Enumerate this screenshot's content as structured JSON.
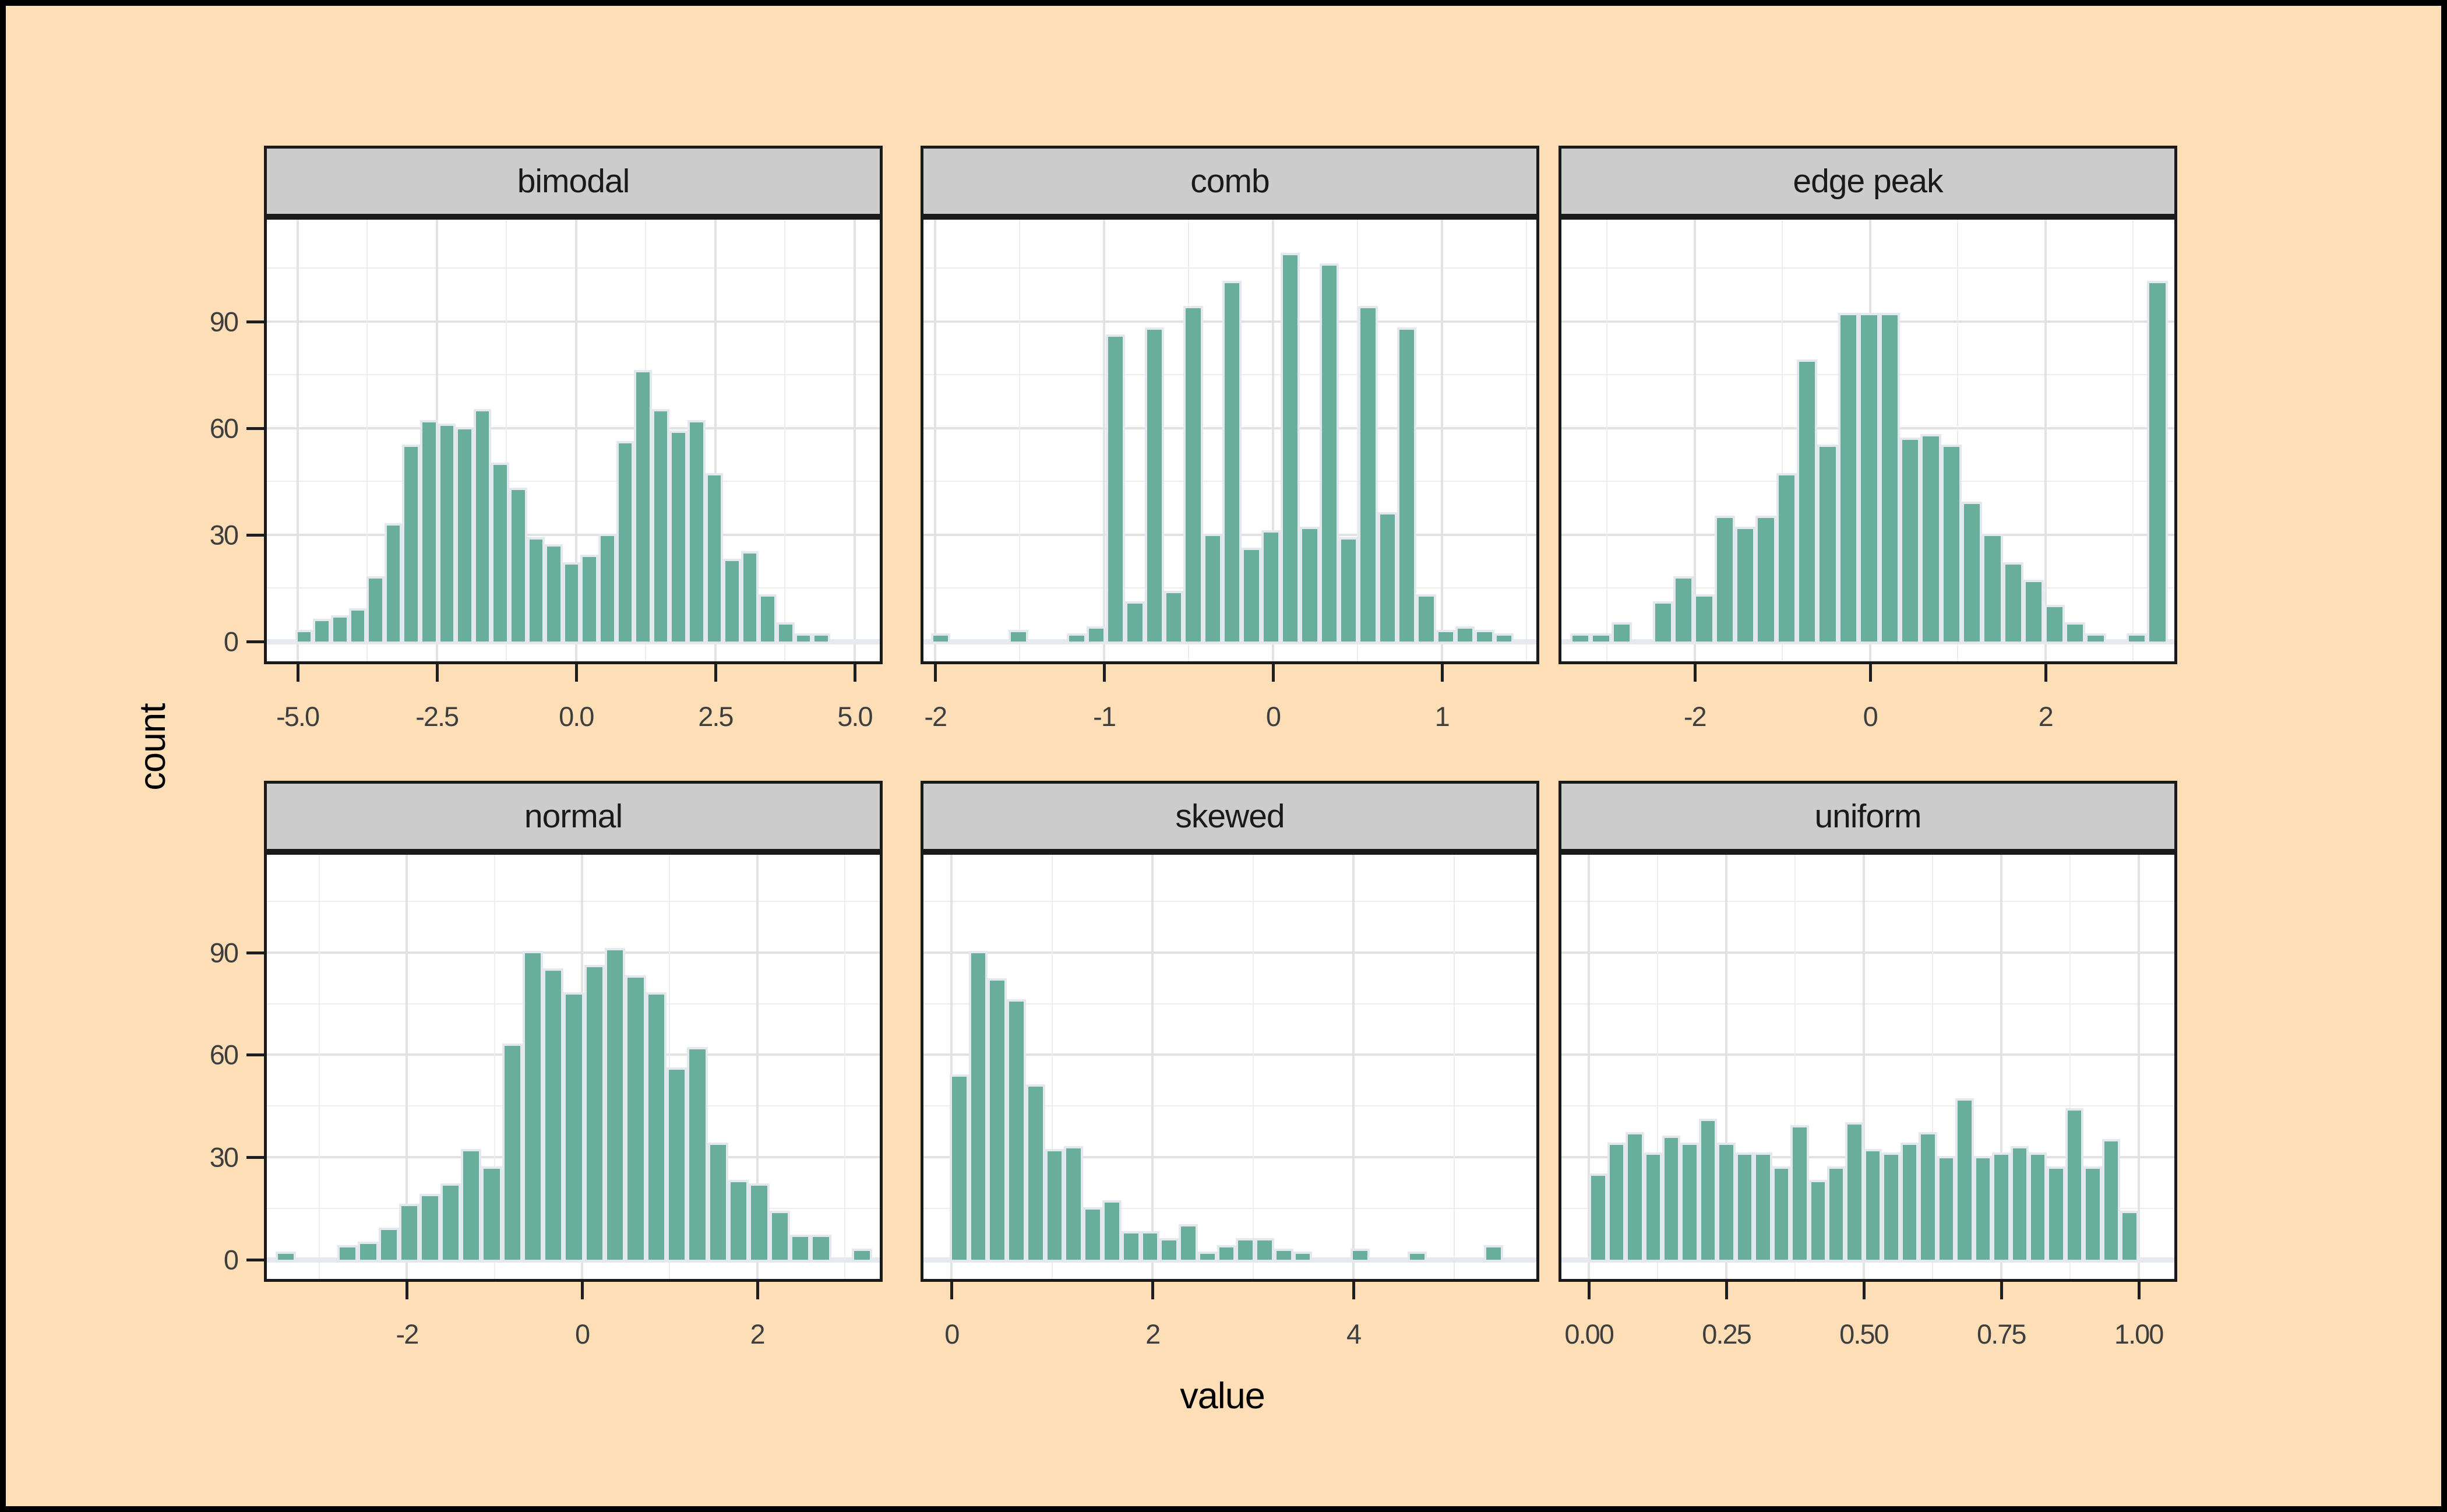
{
  "axes": {
    "x_title": "value",
    "y_title": "count",
    "y_ticks": [
      "0",
      "30",
      "60",
      "90"
    ],
    "y_tick_values": [
      0,
      30,
      60,
      90
    ],
    "y_minor_values": [
      15,
      45,
      75,
      105
    ]
  },
  "chart_data": {
    "type": "bar",
    "subtype": "faceted-histograms",
    "title": "",
    "xlabel": "value",
    "ylabel": "count",
    "ylim": [
      0,
      113
    ],
    "grid": "on",
    "legend": "none",
    "facet_layout": [
      "bimodal",
      "comb",
      "edge peak",
      "normal",
      "skewed",
      "uniform"
    ],
    "panels": [
      {
        "label": "bimodal",
        "xlim": [
          -5.55,
          5.45
        ],
        "tick_values": [
          -5.0,
          -2.5,
          0.0,
          2.5,
          5.0
        ],
        "tick_labels": [
          "-5.0",
          "-2.5",
          "0.0",
          "2.5",
          "5.0"
        ],
        "minor_values": [
          -3.75,
          -1.25,
          1.25,
          3.75
        ],
        "bin_start": -5.04,
        "bin_width": 0.32,
        "counts": [
          2,
          5,
          6,
          8,
          17,
          32,
          54,
          61,
          60,
          59,
          64,
          49,
          42,
          28,
          26,
          21,
          23,
          29,
          55,
          75,
          64,
          58,
          61,
          46,
          22,
          24,
          12,
          4,
          1,
          1
        ]
      },
      {
        "label": "comb",
        "xlim": [
          -2.07,
          1.56
        ],
        "tick_values": [
          -2,
          -1,
          0,
          1
        ],
        "tick_labels": [
          "-2",
          "-1",
          "0",
          "1"
        ],
        "minor_values": [
          -1.5,
          -0.5,
          0.5,
          1.5
        ],
        "bin_start": -2.14,
        "bin_width": 0.115,
        "counts": [
          0,
          1,
          0,
          0,
          0,
          2,
          0,
          0,
          1,
          3,
          85,
          10,
          87,
          13,
          93,
          29,
          100,
          25,
          30,
          108,
          31,
          105,
          28,
          93,
          35,
          87,
          12,
          2,
          3,
          2,
          1,
          0
        ]
      },
      {
        "label": "edge peak",
        "xlim": [
          -3.52,
          3.47
        ],
        "tick_values": [
          -2,
          0,
          2
        ],
        "tick_labels": [
          "-2",
          "0",
          "2"
        ],
        "minor_values": [
          -3,
          -1,
          1,
          3
        ],
        "bin_start": -3.42,
        "bin_width": 0.235,
        "counts": [
          1,
          1,
          4,
          0,
          10,
          17,
          12,
          34,
          31,
          34,
          46,
          78,
          54,
          91,
          91,
          91,
          56,
          57,
          54,
          38,
          29,
          21,
          16,
          9,
          4,
          1,
          0,
          1,
          100
        ]
      },
      {
        "label": "normal",
        "xlim": [
          -3.6,
          3.4
        ],
        "tick_values": [
          -2,
          0,
          2
        ],
        "tick_labels": [
          "-2",
          "0",
          "2"
        ],
        "minor_values": [
          -3,
          -1,
          1,
          3
        ],
        "bin_start": -3.5,
        "bin_width": 0.235,
        "counts": [
          1,
          0,
          0,
          3,
          4,
          8,
          15,
          18,
          21,
          31,
          26,
          62,
          89,
          84,
          77,
          85,
          90,
          82,
          77,
          55,
          61,
          33,
          22,
          21,
          13,
          6,
          6,
          0,
          2
        ]
      },
      {
        "label": "skewed",
        "xlim": [
          -0.28,
          5.82
        ],
        "tick_values": [
          0,
          2,
          4
        ],
        "tick_labels": [
          "0",
          "2",
          "4"
        ],
        "minor_values": [
          1,
          3,
          5
        ],
        "bin_start": -0.02,
        "bin_width": 0.19,
        "counts": [
          53,
          89,
          81,
          75,
          50,
          31,
          32,
          14,
          16,
          7,
          7,
          5,
          9,
          1,
          3,
          5,
          5,
          2,
          1,
          0,
          0,
          2,
          0,
          0,
          1,
          0,
          0,
          0,
          3
        ]
      },
      {
        "label": "uniform",
        "xlim": [
          -0.05,
          1.065
        ],
        "tick_values": [
          0.0,
          0.25,
          0.5,
          0.75,
          1.0
        ],
        "tick_labels": [
          "0.00",
          "0.25",
          "0.50",
          "0.75",
          "1.00"
        ],
        "minor_values": [
          0.125,
          0.375,
          0.625,
          0.875
        ],
        "bin_start": 0.0,
        "bin_width": 0.033333,
        "counts": [
          24,
          33,
          36,
          30,
          35,
          33,
          40,
          33,
          30,
          30,
          26,
          38,
          22,
          26,
          39,
          31,
          30,
          33,
          36,
          29,
          46,
          29,
          30,
          32,
          30,
          26,
          43,
          26,
          34,
          13
        ]
      }
    ],
    "colors": {
      "page_bg": "#FDDEB7",
      "frame": "#000000",
      "panel_bg": "#FFFFFF",
      "panel_border": "#1A1A1A",
      "grid_major": "#E2E2E2",
      "grid_minor": "#EDEDED",
      "strip_bg": "#CCCCCC",
      "strip_text": "#1A1A1A",
      "bar_fill": "#69AE9B",
      "bar_border": "#E3E8EF",
      "baseline_band": "#E6EAF0",
      "tick_mark": "#1E1E1E",
      "tick_label": "#3E3E3E",
      "axis_title": "#000000"
    }
  }
}
